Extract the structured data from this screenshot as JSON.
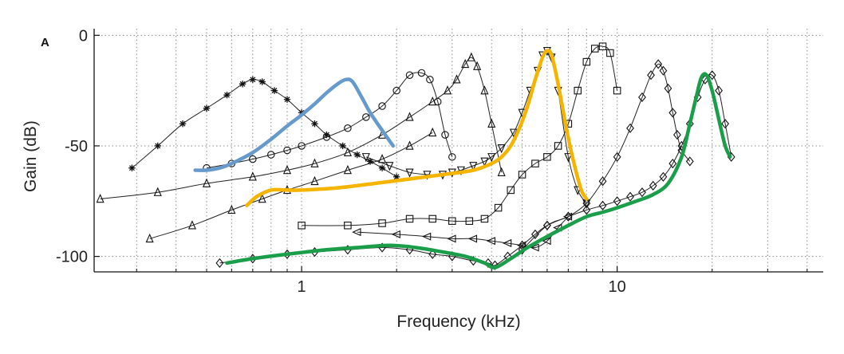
{
  "chart_data": {
    "type": "line",
    "panel_label": "A",
    "title": "",
    "xlabel": "Frequency (kHz)",
    "ylabel": "Gain (dB)",
    "xscale": "log",
    "xlim": [
      0.22,
      45
    ],
    "ylim": [
      -107,
      3
    ],
    "x_ticks": [
      1,
      10
    ],
    "y_ticks": [
      0,
      -50,
      -100
    ],
    "x_tick_labels": [
      "1",
      "10"
    ],
    "y_tick_labels": [
      "0",
      "-50",
      "-100"
    ],
    "grid": true,
    "legend": "none",
    "series": [
      {
        "marker": "star",
        "color": "#111111",
        "fit": false,
        "x": [
          0.29,
          0.35,
          0.42,
          0.5,
          0.58,
          0.65,
          0.7,
          0.75,
          0.82,
          0.9,
          1.0,
          1.1,
          1.2,
          1.35,
          1.5,
          1.65,
          1.8,
          2.0
        ],
        "y": [
          -60,
          -50,
          -40,
          -33,
          -27,
          -22,
          -20,
          -21,
          -25,
          -29,
          -35,
          -40,
          -45,
          -50,
          -54,
          -57,
          -60,
          -64
        ]
      },
      {
        "marker": "circle",
        "color": "#111111",
        "fit": false,
        "x": [
          0.5,
          0.6,
          0.7,
          0.8,
          0.9,
          1.0,
          1.2,
          1.4,
          1.6,
          1.8,
          2.0,
          2.2,
          2.4,
          2.55,
          2.7,
          2.85,
          3.0
        ],
        "y": [
          -60,
          -58,
          -56,
          -54,
          -52,
          -50,
          -46,
          -42,
          -37,
          -32,
          -25,
          -18,
          -17,
          -20,
          -30,
          -45,
          -55
        ]
      },
      {
        "marker": "triangle-up",
        "color": "#111111",
        "fit": false,
        "x": [
          0.23,
          0.35,
          0.5,
          0.7,
          0.9,
          1.1,
          1.4,
          1.8,
          2.2,
          2.6,
          2.9,
          3.1,
          3.3,
          3.45,
          3.6,
          3.8,
          4.0,
          4.3
        ],
        "y": [
          -74,
          -71,
          -67,
          -64,
          -61,
          -58,
          -53,
          -45,
          -37,
          -30,
          -25,
          -20,
          -13,
          -10,
          -14,
          -25,
          -40,
          -62
        ]
      },
      {
        "marker": "triangle-up",
        "color": "#111111",
        "fit": false,
        "x": [
          0.33,
          0.45,
          0.6,
          0.75,
          0.9,
          1.1,
          1.4,
          1.8,
          2.2,
          2.6
        ],
        "y": [
          -92,
          -86,
          -79,
          -74,
          -70,
          -66,
          -61,
          -56,
          -50,
          -44
        ]
      },
      {
        "marker": "triangle-down",
        "color": "#111111",
        "fit": false,
        "x": [
          1.6,
          1.9,
          2.2,
          2.5,
          2.8,
          3.0,
          3.2,
          3.5,
          3.8,
          4.0,
          4.3,
          4.7,
          5.0,
          5.3,
          5.6,
          5.8,
          6.0,
          6.2,
          6.5,
          7.0,
          7.5,
          8.0
        ],
        "y": [
          -55,
          -59,
          -62,
          -63,
          -63,
          -62,
          -61,
          -59,
          -57,
          -55,
          -51,
          -44,
          -35,
          -25,
          -16,
          -9,
          -7,
          -10,
          -25,
          -55,
          -70,
          -76
        ]
      },
      {
        "marker": "square",
        "color": "#111111",
        "fit": false,
        "x": [
          1.0,
          1.4,
          1.8,
          2.2,
          2.6,
          3.0,
          3.4,
          3.8,
          4.2,
          4.6,
          5.0,
          5.5,
          6.0,
          6.5,
          7.0,
          7.5,
          8.0,
          8.5,
          9.0,
          9.5,
          10.0
        ],
        "y": [
          -86,
          -86,
          -85,
          -83,
          -83,
          -84,
          -84,
          -83,
          -78,
          -70,
          -63,
          -58,
          -55,
          -50,
          -40,
          -25,
          -12,
          -6,
          -5,
          -8,
          -25
        ]
      },
      {
        "marker": "diamond",
        "color": "#111111",
        "fit": false,
        "x": [
          5.0,
          6.0,
          7.0,
          8.0,
          9.0,
          10.0,
          11.0,
          12.0,
          12.8,
          13.5,
          14.0,
          14.5,
          15.0,
          15.5,
          16.0,
          17.0
        ],
        "y": [
          -97,
          -86,
          -82,
          -76,
          -66,
          -55,
          -42,
          -28,
          -18,
          -13,
          -16,
          -24,
          -35,
          -45,
          -52,
          -57
        ]
      },
      {
        "marker": "triangle-left",
        "color": "#111111",
        "fit": false,
        "x": [
          1.5,
          2.0,
          2.5,
          3.0,
          3.5,
          4.0,
          4.5,
          5.0,
          5.5,
          6.0,
          6.5,
          7.0
        ],
        "y": [
          -89,
          -90,
          -91,
          -92,
          -92,
          -93,
          -94,
          -95,
          -96,
          -93,
          -87,
          -82
        ]
      },
      {
        "marker": "diamond",
        "color": "#111111",
        "fit": false,
        "x": [
          0.55,
          0.7,
          0.9,
          1.1,
          1.4,
          1.8,
          2.2,
          2.6,
          3.0,
          3.5,
          3.9,
          4.1,
          4.5,
          5.0,
          5.5,
          6.0,
          7.0,
          8.0,
          9.0,
          10.0,
          11.0,
          12.0,
          13.0,
          14.0,
          15.0,
          16.0,
          17.0,
          18.0,
          19.0,
          20.0,
          21.0,
          22.0,
          23.0
        ],
        "y": [
          -103,
          -101,
          -99,
          -98,
          -97,
          -96,
          -97,
          -99,
          -100,
          -102,
          -103,
          -104,
          -100,
          -95,
          -90,
          -86,
          -82,
          -79,
          -77,
          -75,
          -73,
          -71,
          -68,
          -64,
          -58,
          -50,
          -40,
          -28,
          -20,
          -18,
          -25,
          -40,
          -55
        ]
      },
      {
        "marker": "none",
        "color": "#6699cc",
        "fit": true,
        "x": [
          0.46,
          0.5,
          0.55,
          0.6,
          0.7,
          0.8,
          0.9,
          1.0,
          1.1,
          1.2,
          1.3,
          1.38,
          1.45,
          1.55,
          1.65,
          1.8,
          1.95
        ],
        "y": [
          -61,
          -61,
          -60,
          -58,
          -53,
          -47,
          -41,
          -36,
          -31,
          -26,
          -22,
          -20,
          -21,
          -28,
          -35,
          -43,
          -50
        ]
      },
      {
        "marker": "none",
        "color": "#f5b400",
        "fit": true,
        "x": [
          0.67,
          0.72,
          0.8,
          0.9,
          1.0,
          1.3,
          1.7,
          2.2,
          2.8,
          3.5,
          4.0,
          4.3,
          4.6,
          4.9,
          5.2,
          5.5,
          5.8,
          6.0,
          6.2,
          6.5,
          6.9,
          7.3,
          7.7,
          8.0
        ],
        "y": [
          -77,
          -73,
          -70,
          -70,
          -70,
          -69,
          -67,
          -65,
          -63,
          -61,
          -58,
          -55,
          -50,
          -42,
          -32,
          -20,
          -10,
          -7,
          -9,
          -22,
          -42,
          -58,
          -70,
          -74
        ]
      },
      {
        "marker": "none",
        "color": "#1a9e4a",
        "fit": true,
        "x": [
          0.58,
          0.7,
          0.9,
          1.2,
          1.5,
          1.9,
          2.3,
          2.8,
          3.3,
          3.8,
          4.1,
          4.6,
          5.2,
          6.0,
          7.0,
          8.0,
          9.0,
          10.0,
          11.5,
          13.0,
          14.5,
          16.0,
          17.0,
          17.8,
          18.5,
          19.2,
          20.0,
          21.0,
          22.0,
          22.8
        ],
        "y": [
          -103,
          -101,
          -99,
          -97,
          -96,
          -95,
          -96,
          -98,
          -100,
          -103,
          -105,
          -101,
          -96,
          -91,
          -86,
          -82,
          -80,
          -78,
          -75,
          -72,
          -67,
          -55,
          -40,
          -28,
          -19,
          -18,
          -25,
          -38,
          -50,
          -55
        ]
      }
    ]
  }
}
